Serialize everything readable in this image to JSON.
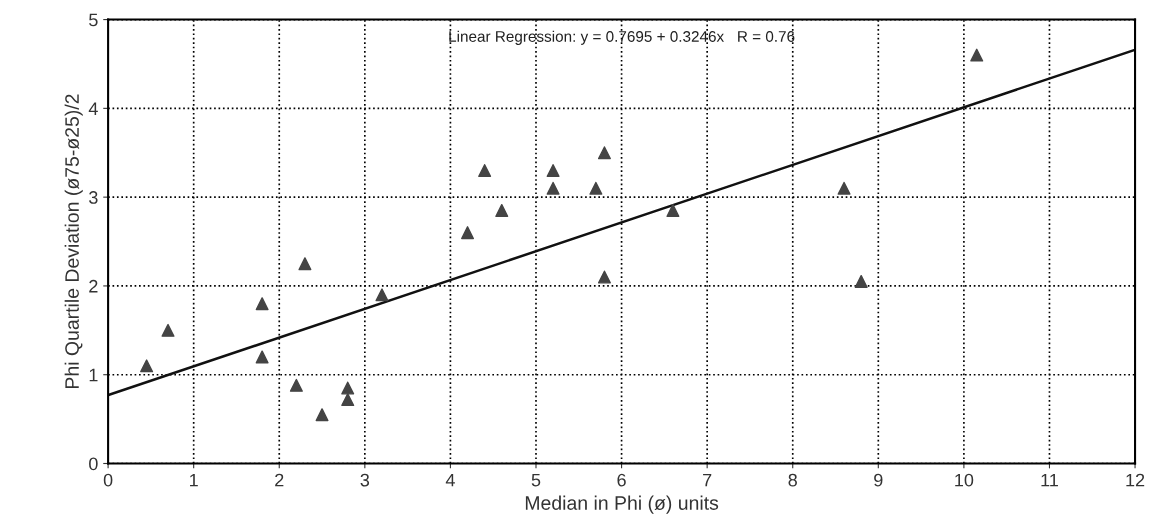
{
  "chart_data": {
    "type": "scatter",
    "xlabel": "Median in Phi (ø) units",
    "ylabel": "Phi Quartile Deviation (ø75-ø25)/2",
    "annotations": [
      "Linear Regression: y = 0.7695 + 0.3246x   R = 0.76"
    ],
    "series": [
      {
        "color": "#444444",
        "marker": "triangle",
        "x": [
          0.45,
          0.7,
          1.8,
          1.8,
          2.2,
          2.3,
          2.5,
          2.8,
          2.8,
          3.2,
          4.2,
          4.4,
          4.6,
          5.2,
          5.2,
          5.7,
          5.8,
          5.8,
          6.6,
          8.6,
          8.8,
          10.15
        ],
        "values": [
          1.1,
          1.5,
          1.8,
          1.2,
          0.88,
          2.25,
          0.55,
          0.85,
          0.72,
          1.9,
          2.6,
          3.3,
          2.85,
          3.3,
          3.1,
          3.1,
          3.5,
          2.1,
          2.85,
          3.1,
          2.05,
          4.6
        ]
      },
      {
        "type": "line",
        "color": "#111111",
        "marker": "none",
        "line_style": "solid",
        "x": [
          0,
          12
        ],
        "values": [
          0.77,
          4.66
        ]
      }
    ],
    "xlim": [
      0,
      12
    ],
    "ylim": [
      0,
      5
    ],
    "xticks": [
      0,
      1,
      2,
      3,
      4,
      5,
      6,
      7,
      8,
      9,
      10,
      11,
      12
    ],
    "yticks": [
      0,
      1,
      2,
      3,
      4,
      5
    ],
    "grid": true,
    "legend": false
  }
}
